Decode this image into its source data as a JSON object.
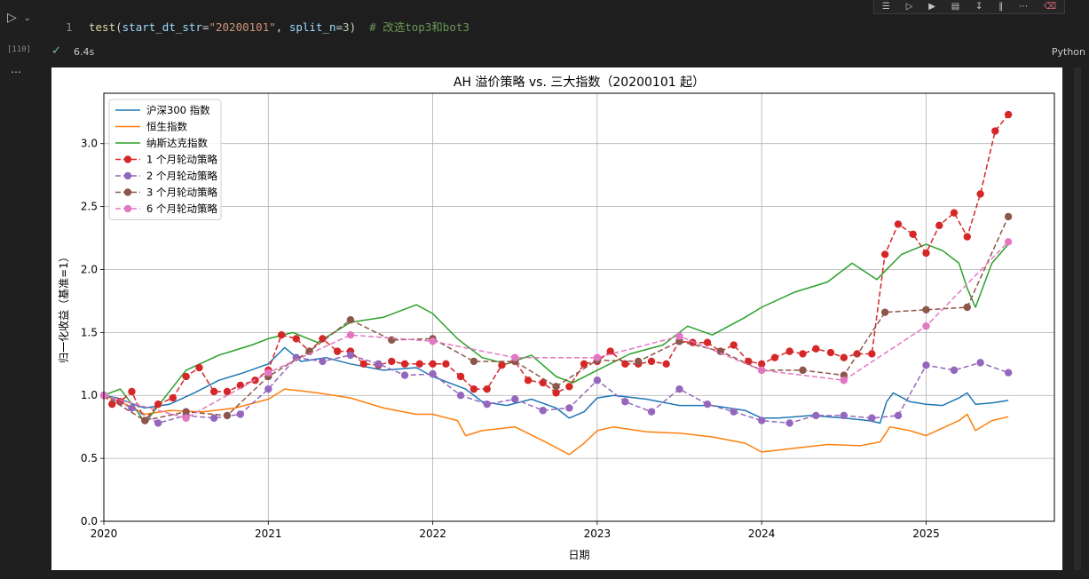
{
  "notebook": {
    "toolbar_icons": [
      "run-above-icon",
      "run-below-icon",
      "run-next-icon",
      "split-cell-icon",
      "tree-icon",
      "layout-icon",
      "more-icon",
      "trash-icon"
    ],
    "execution_count": "[110]",
    "line_number": "1",
    "code": {
      "fn": "test",
      "open": "(",
      "param1": "start_dt_str",
      "eq": "=",
      "str1": "\"20200101\"",
      "comma": ", ",
      "param2": "split_n",
      "num": "3",
      "close": ")",
      "comment": "  # 改选top3和bot3"
    },
    "duration": "6.4s",
    "language": "Python",
    "colors": {
      "background": "#1f1f1f",
      "success": "#73c991",
      "fn": "#dcdcaa",
      "param": "#9cdcfe",
      "string": "#ce9178",
      "comment": "#6a9955"
    }
  },
  "chart_data": {
    "type": "line",
    "title": "AH 溢价策略 vs. 三大指数（20200101 起）",
    "xlabel": "日期",
    "ylabel": "归一化收益（基准=1）",
    "xlim": [
      2020.0,
      2025.78
    ],
    "ylim": [
      0.0,
      3.4
    ],
    "x_ticks": [
      2020,
      2021,
      2022,
      2023,
      2024,
      2025
    ],
    "x_tick_labels": [
      "2020",
      "2021",
      "2022",
      "2023",
      "2024",
      "2025"
    ],
    "y_ticks": [
      0.0,
      0.5,
      1.0,
      1.5,
      2.0,
      2.5,
      3.0
    ],
    "y_tick_labels": [
      "0.0",
      "0.5",
      "1.0",
      "1.5",
      "2.0",
      "2.5",
      "3.0"
    ],
    "grid": true,
    "legend_position": "upper-left",
    "series": [
      {
        "name": "沪深300 指数",
        "color": "#1f77b4",
        "style": "solid",
        "marker": false,
        "x": [
          2020.0,
          2020.08,
          2020.2,
          2020.25,
          2020.4,
          2020.55,
          2020.7,
          2020.85,
          2021.0,
          2021.1,
          2021.2,
          2021.35,
          2021.5,
          2021.7,
          2021.9,
          2022.0,
          2022.1,
          2022.2,
          2022.3,
          2022.45,
          2022.6,
          2022.75,
          2022.83,
          2022.92,
          2023.0,
          2023.1,
          2023.3,
          2023.5,
          2023.7,
          2023.9,
          2024.0,
          2024.1,
          2024.3,
          2024.5,
          2024.65,
          2024.72,
          2024.76,
          2024.8,
          2024.9,
          2025.0,
          2025.1,
          2025.2,
          2025.25,
          2025.3,
          2025.4,
          2025.5
        ],
        "y": [
          1.0,
          0.98,
          0.92,
          0.9,
          0.93,
          1.02,
          1.12,
          1.18,
          1.25,
          1.38,
          1.27,
          1.3,
          1.25,
          1.2,
          1.22,
          1.15,
          1.1,
          1.05,
          0.95,
          0.92,
          0.97,
          0.9,
          0.82,
          0.87,
          0.98,
          1.0,
          0.97,
          0.92,
          0.92,
          0.88,
          0.82,
          0.82,
          0.84,
          0.82,
          0.8,
          0.78,
          0.95,
          1.02,
          0.95,
          0.93,
          0.92,
          0.98,
          1.02,
          0.93,
          0.94,
          0.96
        ]
      },
      {
        "name": "恒生指数",
        "color": "#ff7f0e",
        "style": "solid",
        "marker": false,
        "x": [
          2020.0,
          2020.15,
          2020.25,
          2020.4,
          2020.6,
          2020.8,
          2021.0,
          2021.1,
          2021.3,
          2021.5,
          2021.7,
          2021.9,
          2022.0,
          2022.15,
          2022.2,
          2022.3,
          2022.5,
          2022.7,
          2022.83,
          2022.92,
          2023.0,
          2023.1,
          2023.3,
          2023.5,
          2023.7,
          2023.9,
          2024.0,
          2024.2,
          2024.4,
          2024.6,
          2024.72,
          2024.78,
          2024.9,
          2025.0,
          2025.2,
          2025.25,
          2025.3,
          2025.4,
          2025.5
        ],
        "y": [
          1.0,
          0.92,
          0.85,
          0.88,
          0.87,
          0.9,
          0.97,
          1.05,
          1.02,
          0.98,
          0.9,
          0.85,
          0.85,
          0.8,
          0.68,
          0.72,
          0.75,
          0.62,
          0.53,
          0.62,
          0.72,
          0.75,
          0.71,
          0.7,
          0.67,
          0.62,
          0.55,
          0.58,
          0.61,
          0.6,
          0.63,
          0.75,
          0.72,
          0.68,
          0.8,
          0.85,
          0.72,
          0.8,
          0.83
        ]
      },
      {
        "name": "纳斯达克指数",
        "color": "#2ca02c",
        "style": "solid",
        "marker": false,
        "x": [
          2020.0,
          2020.1,
          2020.2,
          2020.25,
          2020.35,
          2020.5,
          2020.7,
          2020.9,
          2021.0,
          2021.15,
          2021.3,
          2021.5,
          2021.7,
          2021.9,
          2022.0,
          2022.15,
          2022.3,
          2022.45,
          2022.6,
          2022.75,
          2022.85,
          2023.0,
          2023.2,
          2023.4,
          2023.55,
          2023.7,
          2023.9,
          2024.0,
          2024.2,
          2024.4,
          2024.55,
          2024.7,
          2024.85,
          2025.0,
          2025.1,
          2025.2,
          2025.25,
          2025.3,
          2025.4,
          2025.5
        ],
        "y": [
          1.0,
          1.05,
          0.88,
          0.78,
          0.95,
          1.2,
          1.32,
          1.4,
          1.45,
          1.5,
          1.42,
          1.58,
          1.62,
          1.72,
          1.65,
          1.45,
          1.3,
          1.25,
          1.32,
          1.15,
          1.1,
          1.2,
          1.33,
          1.4,
          1.55,
          1.48,
          1.62,
          1.7,
          1.82,
          1.9,
          2.05,
          1.92,
          2.12,
          2.2,
          2.15,
          2.05,
          1.85,
          1.7,
          2.05,
          2.2
        ]
      },
      {
        "name": "1 个月轮动策略",
        "color": "#d62728",
        "style": "dashed",
        "marker": true,
        "x": [
          2020.0,
          2020.05,
          2020.1,
          2020.17,
          2020.25,
          2020.33,
          2020.42,
          2020.5,
          2020.58,
          2020.67,
          2020.75,
          2020.83,
          2020.92,
          2021.0,
          2021.08,
          2021.17,
          2021.25,
          2021.33,
          2021.42,
          2021.5,
          2021.58,
          2021.67,
          2021.75,
          2021.83,
          2021.92,
          2022.0,
          2022.08,
          2022.17,
          2022.25,
          2022.33,
          2022.42,
          2022.5,
          2022.58,
          2022.67,
          2022.75,
          2022.83,
          2022.92,
          2023.0,
          2023.08,
          2023.17,
          2023.25,
          2023.33,
          2023.42,
          2023.5,
          2023.58,
          2023.67,
          2023.75,
          2023.83,
          2023.92,
          2024.0,
          2024.08,
          2024.17,
          2024.25,
          2024.33,
          2024.42,
          2024.5,
          2024.58,
          2024.67,
          2024.75,
          2024.83,
          2024.92,
          2025.0,
          2025.08,
          2025.17,
          2025.25,
          2025.33,
          2025.42,
          2025.5
        ],
        "y": [
          1.0,
          0.93,
          0.95,
          1.03,
          0.8,
          0.93,
          0.98,
          1.15,
          1.22,
          1.03,
          1.03,
          1.08,
          1.12,
          1.2,
          1.48,
          1.45,
          1.35,
          1.45,
          1.35,
          1.35,
          1.25,
          1.24,
          1.27,
          1.25,
          1.25,
          1.25,
          1.25,
          1.15,
          1.05,
          1.05,
          1.24,
          1.27,
          1.12,
          1.1,
          1.02,
          1.07,
          1.25,
          1.27,
          1.35,
          1.25,
          1.25,
          1.27,
          1.25,
          1.43,
          1.42,
          1.42,
          1.35,
          1.4,
          1.27,
          1.25,
          1.3,
          1.35,
          1.33,
          1.37,
          1.34,
          1.3,
          1.33,
          1.33,
          2.12,
          2.36,
          2.28,
          2.13,
          2.35,
          2.45,
          2.26,
          2.6,
          3.1,
          3.23
        ]
      },
      {
        "name": "2 个月轮动策略",
        "color": "#9467bd",
        "style": "dashed",
        "marker": true,
        "x": [
          2020.0,
          2020.17,
          2020.33,
          2020.5,
          2020.67,
          2020.83,
          2021.0,
          2021.17,
          2021.33,
          2021.5,
          2021.67,
          2021.83,
          2022.0,
          2022.17,
          2022.33,
          2022.5,
          2022.67,
          2022.83,
          2023.0,
          2023.17,
          2023.33,
          2023.5,
          2023.67,
          2023.83,
          2024.0,
          2024.17,
          2024.33,
          2024.5,
          2024.67,
          2024.83,
          2025.0,
          2025.17,
          2025.33,
          2025.5
        ],
        "y": [
          1.0,
          0.9,
          0.78,
          0.84,
          0.82,
          0.85,
          1.05,
          1.3,
          1.27,
          1.32,
          1.25,
          1.16,
          1.17,
          1.0,
          0.93,
          0.97,
          0.88,
          0.9,
          1.12,
          0.95,
          0.87,
          1.05,
          0.93,
          0.87,
          0.8,
          0.78,
          0.84,
          0.84,
          0.82,
          0.84,
          1.24,
          1.2,
          1.26,
          1.18
        ]
      },
      {
        "name": "3 个月轮动策略",
        "color": "#8c564b",
        "style": "dashed",
        "marker": true,
        "x": [
          2020.0,
          2020.25,
          2020.5,
          2020.75,
          2021.0,
          2021.25,
          2021.5,
          2021.75,
          2022.0,
          2022.25,
          2022.5,
          2022.75,
          2023.0,
          2023.25,
          2023.5,
          2023.75,
          2024.0,
          2024.25,
          2024.5,
          2024.75,
          2025.0,
          2025.25,
          2025.5
        ],
        "y": [
          1.0,
          0.8,
          0.87,
          0.84,
          1.15,
          1.35,
          1.6,
          1.44,
          1.45,
          1.27,
          1.27,
          1.07,
          1.28,
          1.27,
          1.43,
          1.35,
          1.2,
          1.2,
          1.16,
          1.66,
          1.68,
          1.7,
          2.42
        ]
      },
      {
        "name": "6 个月轮动策略",
        "color": "#e377c2",
        "style": "dashed",
        "marker": true,
        "x": [
          2020.0,
          2020.5,
          2021.0,
          2021.5,
          2022.0,
          2022.5,
          2023.0,
          2023.5,
          2024.0,
          2024.5,
          2025.0,
          2025.5
        ],
        "y": [
          1.0,
          0.82,
          1.18,
          1.48,
          1.43,
          1.3,
          1.3,
          1.47,
          1.2,
          1.12,
          1.55,
          2.22
        ]
      }
    ]
  }
}
